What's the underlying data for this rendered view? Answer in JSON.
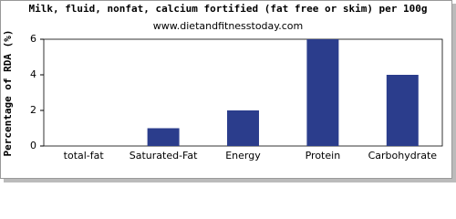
{
  "chart_data": {
    "type": "bar",
    "title": "Milk, fluid, nonfat, calcium fortified (fat free or skim) per 100g",
    "subtitle": "www.dietandfitnesstoday.com",
    "ylabel": "Percentage of RDA (%)",
    "categories": [
      "total-fat",
      "Saturated-Fat",
      "Energy",
      "Protein",
      "Carbohydrate"
    ],
    "values": [
      0,
      1,
      2,
      6,
      4
    ],
    "color": "#2b3d8c",
    "ylim": [
      0,
      6
    ],
    "yticks": [
      0,
      2,
      4,
      6
    ],
    "grid": false
  }
}
